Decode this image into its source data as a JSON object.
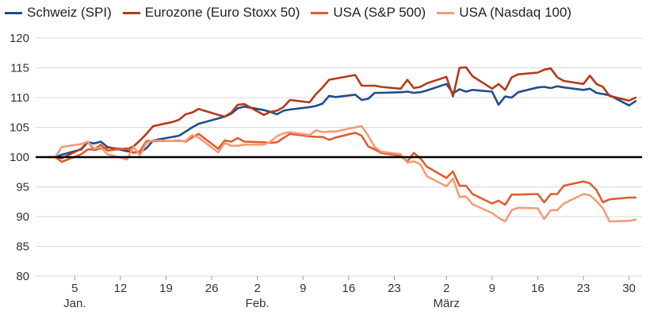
{
  "chart_data": {
    "type": "line",
    "title": "",
    "xlabel": "",
    "ylabel": "",
    "ylim": [
      80,
      120
    ],
    "yticks": [
      80,
      85,
      90,
      95,
      100,
      105,
      110,
      115,
      120
    ],
    "grid": "horizontal",
    "legend_position": "top",
    "reference_line": {
      "y": 100,
      "color": "#000000"
    },
    "x": [
      "2020-01-01",
      "2020-01-02",
      "2020-01-03",
      "2020-01-06",
      "2020-01-07",
      "2020-01-08",
      "2020-01-09",
      "2020-01-10",
      "2020-01-13",
      "2020-01-14",
      "2020-01-15",
      "2020-01-16",
      "2020-01-17",
      "2020-01-20",
      "2020-01-21",
      "2020-01-22",
      "2020-01-23",
      "2020-01-24",
      "2020-01-27",
      "2020-01-28",
      "2020-01-29",
      "2020-01-30",
      "2020-01-31",
      "2020-02-03",
      "2020-02-04",
      "2020-02-05",
      "2020-02-06",
      "2020-02-07",
      "2020-02-10",
      "2020-02-11",
      "2020-02-12",
      "2020-02-13",
      "2020-02-14",
      "2020-02-17",
      "2020-02-18",
      "2020-02-19",
      "2020-02-20",
      "2020-02-21",
      "2020-02-24",
      "2020-02-25",
      "2020-02-26",
      "2020-02-27",
      "2020-02-28",
      "2020-03-02",
      "2020-03-03",
      "2020-03-04",
      "2020-03-05",
      "2020-03-06",
      "2020-03-09",
      "2020-03-10",
      "2020-03-11",
      "2020-03-12",
      "2020-03-13",
      "2020-03-16",
      "2020-03-17",
      "2020-03-18",
      "2020-03-19",
      "2020-03-20",
      "2020-03-23",
      "2020-03-24",
      "2020-03-25",
      "2020-03-26",
      "2020-03-27",
      "2020-03-30",
      "2020-03-31"
    ],
    "x_ticks": [
      {
        "date": "2020-01-05",
        "label": "5",
        "group": "Jan."
      },
      {
        "date": "2020-01-12",
        "label": "12"
      },
      {
        "date": "2020-01-19",
        "label": "19"
      },
      {
        "date": "2020-01-26",
        "label": "26"
      },
      {
        "date": "2020-02-02",
        "label": "2",
        "group": "Feb."
      },
      {
        "date": "2020-02-09",
        "label": "9"
      },
      {
        "date": "2020-02-16",
        "label": "16"
      },
      {
        "date": "2020-02-23",
        "label": "23"
      },
      {
        "date": "2020-03-02",
        "label": "2",
        "group": "März"
      },
      {
        "date": "2020-03-09",
        "label": "9"
      },
      {
        "date": "2020-03-16",
        "label": "16"
      },
      {
        "date": "2020-03-23",
        "label": "23"
      },
      {
        "date": "2020-03-30",
        "label": "30"
      }
    ],
    "x_range": [
      "2019-12-30",
      "2020-04-01"
    ],
    "series": [
      {
        "name": "Schweiz (SPI)",
        "color": "#1f4e8c",
        "values": [
          100,
          100,
          100.4,
          101.3,
          102.5,
          102.3,
          102.6,
          101.7,
          101,
          100.8,
          100.8,
          101.5,
          102.8,
          103.4,
          103.6,
          104.3,
          105,
          105.6,
          106.5,
          106.8,
          107.3,
          108.2,
          108.5,
          107.9,
          107.6,
          107.2,
          107.8,
          108,
          108.4,
          108.6,
          109,
          110.3,
          110.1,
          110.5,
          109.6,
          109.8,
          110.8,
          110.8,
          110.9,
          111,
          110.8,
          110.9,
          111.2,
          112.3,
          110.7,
          111.4,
          111,
          111.3,
          111,
          108.8,
          110.2,
          110,
          110.9,
          111.7,
          111.8,
          111.6,
          111.9,
          111.7,
          111.3,
          111.5,
          110.8,
          110.6,
          110.4,
          108.7,
          109.4
        ]
      },
      {
        "name": "Eurozone (Euro Stoxx 50)",
        "color": "#b33a1a",
        "values": [
          100,
          100,
          99.8,
          101.4,
          102.6,
          101.2,
          101.5,
          101.6,
          101.3,
          101.8,
          102.8,
          103.9,
          105.2,
          105.9,
          106.3,
          107.2,
          107.5,
          108.1,
          107.1,
          106.8,
          107.5,
          108.8,
          108.9,
          107.1,
          107.6,
          107.8,
          108.4,
          109.6,
          109.2,
          110.6,
          111.7,
          113,
          113.2,
          113.8,
          112,
          112,
          112,
          111.8,
          111.5,
          113,
          111.6,
          111.8,
          112.4,
          113.5,
          110.2,
          115,
          115.1,
          113.6,
          111.5,
          112.3,
          111.3,
          113.4,
          113.9,
          114.2,
          114.7,
          114.9,
          113.4,
          112.8,
          112.3,
          113.7,
          112.3,
          111.8,
          110.3,
          109.5,
          110
        ]
      },
      {
        "name": "USA (S&P 500)",
        "color": "#e05c2e",
        "values": [
          100,
          100,
          99.2,
          100.5,
          101.3,
          101.3,
          102.1,
          101.1,
          101.5,
          100.7,
          101,
          102.7,
          102.7,
          102.7,
          102.8,
          102.6,
          103.3,
          103.9,
          101.4,
          102.8,
          102.6,
          103.2,
          102.6,
          102.5,
          102.4,
          102.5,
          103.2,
          103.9,
          103.5,
          103.4,
          103.4,
          102.9,
          103.3,
          104.1,
          103.6,
          101.8,
          101.3,
          100.7,
          100.2,
          99.3,
          100.7,
          99.8,
          98.4,
          96.5,
          97.6,
          95.2,
          95.2,
          93.8,
          92.2,
          92.7,
          92,
          93.7,
          93.7,
          93.8,
          92.4,
          93.8,
          93.8,
          95.2,
          95.9,
          95.6,
          94.5,
          92.4,
          92.9,
          93.2,
          93.2
        ]
      },
      {
        "name": "USA (Nasdaq 100)",
        "color": "#f59a78",
        "values": [
          100,
          100,
          101.7,
          102.2,
          102.6,
          101.4,
          101.6,
          100.5,
          99.6,
          101.7,
          100.3,
          102.4,
          102.8,
          102.7,
          102.7,
          102.7,
          103.7,
          103.3,
          100.8,
          102.4,
          101.9,
          101.9,
          102.1,
          102.1,
          102.6,
          103.5,
          104,
          104.2,
          103.7,
          104.5,
          104.2,
          104.3,
          104.3,
          105,
          105.2,
          103.6,
          101.7,
          100.9,
          100.5,
          99.1,
          99.3,
          98.8,
          96.8,
          95.1,
          96.4,
          93.3,
          93.4,
          92.1,
          90.6,
          89.8,
          89.2,
          91.1,
          91.5,
          91.4,
          89.6,
          91.1,
          91.1,
          92.2,
          93.8,
          93.6,
          92.6,
          91.4,
          89.2,
          89.3,
          89.5
        ]
      }
    ]
  }
}
